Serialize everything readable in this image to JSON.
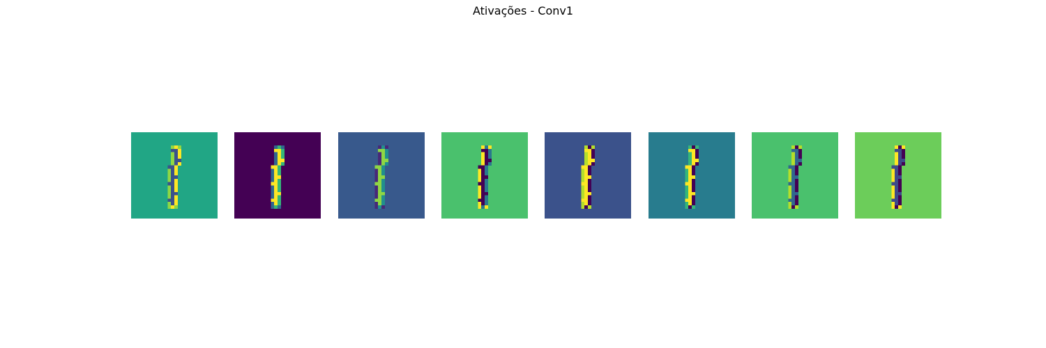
{
  "chart_data": {
    "type": "heatmap",
    "title": "Ativações - Conv1",
    "colormap": "viridis",
    "axes_visible": false,
    "grid": false,
    "panels": [
      {
        "background": "#21a685",
        "stroke_left": "#8fd744",
        "stroke_mid": "#3b528b",
        "stroke_right": "#fde725",
        "lean": "slight-left"
      },
      {
        "background": "#440154",
        "stroke_left": "#31688e",
        "stroke_mid": "#fde725",
        "stroke_right": "#35b779",
        "lean": "slight-left"
      },
      {
        "background": "#38598c",
        "stroke_left": "#482878",
        "stroke_mid": "#8fd744",
        "stroke_right": "#21908d",
        "lean": "slight-left"
      },
      {
        "background": "#4ac16d",
        "stroke_left": "#fde725",
        "stroke_mid": "#440154",
        "stroke_right": "#2a788e",
        "lean": "slight-left"
      },
      {
        "background": "#3b528b",
        "stroke_left": "#b5de2b",
        "stroke_mid": "#fde725",
        "stroke_right": "#440154",
        "lean": "slight-left"
      },
      {
        "background": "#287c8e",
        "stroke_left": "#35b779",
        "stroke_mid": "#fde725",
        "stroke_right": "#440154",
        "lean": "slight-left"
      },
      {
        "background": "#4ac16d",
        "stroke_left": "#b5de2b",
        "stroke_mid": "#31688e",
        "stroke_right": "#440154",
        "lean": "slight-left"
      },
      {
        "background": "#6ccd5a",
        "stroke_left": "#fde725",
        "stroke_mid": "#3e4a89",
        "stroke_right": "#440154",
        "lean": "slight-left"
      }
    ]
  }
}
